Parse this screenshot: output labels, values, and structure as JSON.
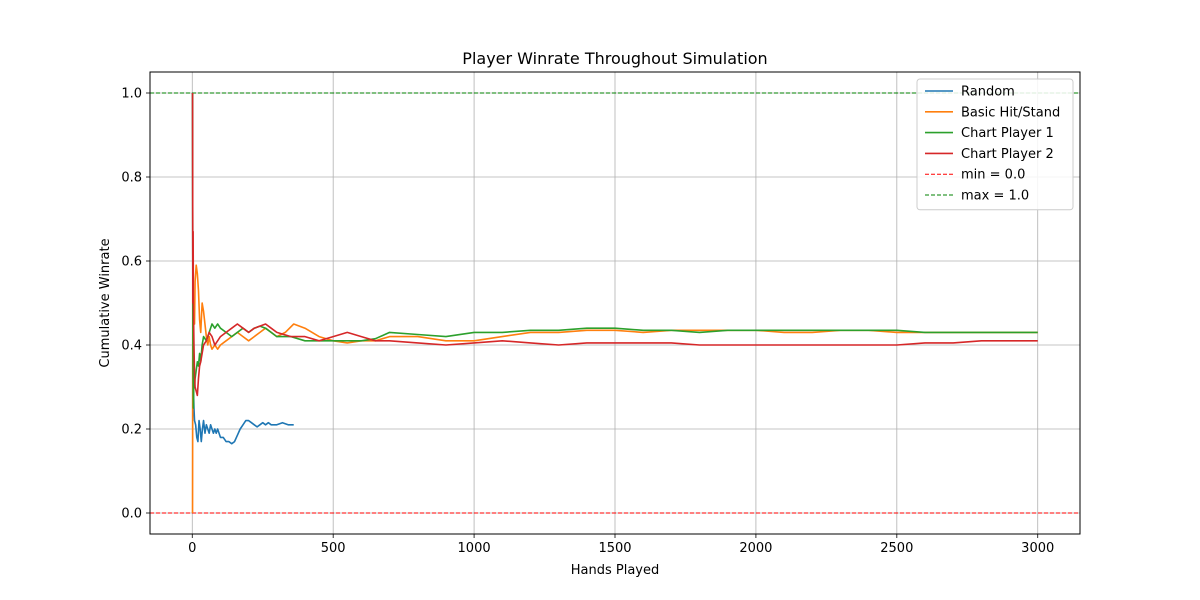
{
  "chart_data": {
    "type": "line",
    "title": "Player Winrate Throughout Simulation",
    "xlabel": "Hands Played",
    "ylabel": "Cumulative Winrate",
    "xlim": [
      -150,
      3150
    ],
    "ylim": [
      -0.05,
      1.05
    ],
    "xticks": [
      0,
      500,
      1000,
      1500,
      2000,
      2500,
      3000
    ],
    "yticks": [
      0.0,
      0.2,
      0.4,
      0.6,
      0.8,
      1.0
    ],
    "grid": true,
    "legend_position": "top-right",
    "series": [
      {
        "name": "Random",
        "color": "#1f77b4",
        "points": [
          [
            1,
            1.0
          ],
          [
            2,
            0.5
          ],
          [
            4,
            0.3
          ],
          [
            6,
            0.25
          ],
          [
            8,
            0.22
          ],
          [
            12,
            0.21
          ],
          [
            16,
            0.18
          ],
          [
            20,
            0.17
          ],
          [
            24,
            0.22
          ],
          [
            28,
            0.2
          ],
          [
            32,
            0.17
          ],
          [
            36,
            0.2
          ],
          [
            40,
            0.22
          ],
          [
            45,
            0.19
          ],
          [
            50,
            0.21
          ],
          [
            55,
            0.2
          ],
          [
            60,
            0.19
          ],
          [
            65,
            0.21
          ],
          [
            70,
            0.2
          ],
          [
            75,
            0.19
          ],
          [
            80,
            0.2
          ],
          [
            85,
            0.19
          ],
          [
            90,
            0.2
          ],
          [
            95,
            0.19
          ],
          [
            100,
            0.18
          ],
          [
            110,
            0.18
          ],
          [
            120,
            0.17
          ],
          [
            130,
            0.17
          ],
          [
            140,
            0.165
          ],
          [
            150,
            0.17
          ],
          [
            160,
            0.185
          ],
          [
            170,
            0.2
          ],
          [
            180,
            0.21
          ],
          [
            190,
            0.22
          ],
          [
            200,
            0.22
          ],
          [
            210,
            0.215
          ],
          [
            220,
            0.21
          ],
          [
            230,
            0.205
          ],
          [
            240,
            0.21
          ],
          [
            250,
            0.215
          ],
          [
            260,
            0.21
          ],
          [
            270,
            0.215
          ],
          [
            280,
            0.21
          ],
          [
            300,
            0.21
          ],
          [
            320,
            0.215
          ],
          [
            340,
            0.21
          ],
          [
            360,
            0.21
          ]
        ]
      },
      {
        "name": "Basic Hit/Stand",
        "color": "#ff7f0e",
        "points": [
          [
            1,
            0.0
          ],
          [
            2,
            0.5
          ],
          [
            3,
            0.33
          ],
          [
            4,
            0.5
          ],
          [
            6,
            0.5
          ],
          [
            8,
            0.45
          ],
          [
            10,
            0.55
          ],
          [
            14,
            0.59
          ],
          [
            18,
            0.57
          ],
          [
            22,
            0.53
          ],
          [
            26,
            0.46
          ],
          [
            30,
            0.43
          ],
          [
            35,
            0.5
          ],
          [
            40,
            0.48
          ],
          [
            45,
            0.45
          ],
          [
            50,
            0.42
          ],
          [
            55,
            0.4
          ],
          [
            60,
            0.42
          ],
          [
            65,
            0.4
          ],
          [
            70,
            0.39
          ],
          [
            80,
            0.4
          ],
          [
            90,
            0.39
          ],
          [
            100,
            0.4
          ],
          [
            120,
            0.41
          ],
          [
            140,
            0.42
          ],
          [
            160,
            0.43
          ],
          [
            180,
            0.42
          ],
          [
            200,
            0.41
          ],
          [
            220,
            0.42
          ],
          [
            240,
            0.43
          ],
          [
            260,
            0.44
          ],
          [
            280,
            0.43
          ],
          [
            300,
            0.42
          ],
          [
            330,
            0.43
          ],
          [
            360,
            0.45
          ],
          [
            400,
            0.44
          ],
          [
            450,
            0.42
          ],
          [
            500,
            0.41
          ],
          [
            550,
            0.405
          ],
          [
            600,
            0.41
          ],
          [
            650,
            0.41
          ],
          [
            700,
            0.42
          ],
          [
            800,
            0.42
          ],
          [
            900,
            0.41
          ],
          [
            1000,
            0.41
          ],
          [
            1100,
            0.42
          ],
          [
            1200,
            0.43
          ],
          [
            1300,
            0.43
          ],
          [
            1400,
            0.435
          ],
          [
            1500,
            0.435
          ],
          [
            1600,
            0.43
          ],
          [
            1700,
            0.435
          ],
          [
            1800,
            0.435
          ],
          [
            1900,
            0.435
          ],
          [
            2000,
            0.435
          ],
          [
            2100,
            0.43
          ],
          [
            2200,
            0.43
          ],
          [
            2300,
            0.435
          ],
          [
            2400,
            0.435
          ],
          [
            2500,
            0.43
          ],
          [
            2600,
            0.43
          ],
          [
            2700,
            0.43
          ],
          [
            2800,
            0.43
          ],
          [
            2900,
            0.43
          ],
          [
            3000,
            0.43
          ]
        ]
      },
      {
        "name": "Chart Player 1",
        "color": "#2ca02c",
        "points": [
          [
            1,
            1.0
          ],
          [
            2,
            0.5
          ],
          [
            3,
            0.33
          ],
          [
            4,
            0.25
          ],
          [
            6,
            0.33
          ],
          [
            8,
            0.3
          ],
          [
            10,
            0.32
          ],
          [
            14,
            0.34
          ],
          [
            18,
            0.36
          ],
          [
            22,
            0.35
          ],
          [
            26,
            0.38
          ],
          [
            30,
            0.36
          ],
          [
            35,
            0.4
          ],
          [
            40,
            0.42
          ],
          [
            50,
            0.41
          ],
          [
            60,
            0.43
          ],
          [
            70,
            0.45
          ],
          [
            80,
            0.44
          ],
          [
            90,
            0.45
          ],
          [
            100,
            0.44
          ],
          [
            120,
            0.43
          ],
          [
            140,
            0.42
          ],
          [
            160,
            0.43
          ],
          [
            180,
            0.44
          ],
          [
            200,
            0.43
          ],
          [
            220,
            0.44
          ],
          [
            240,
            0.445
          ],
          [
            260,
            0.44
          ],
          [
            280,
            0.43
          ],
          [
            300,
            0.42
          ],
          [
            350,
            0.42
          ],
          [
            400,
            0.41
          ],
          [
            450,
            0.41
          ],
          [
            500,
            0.41
          ],
          [
            550,
            0.41
          ],
          [
            600,
            0.41
          ],
          [
            650,
            0.415
          ],
          [
            700,
            0.43
          ],
          [
            800,
            0.425
          ],
          [
            900,
            0.42
          ],
          [
            1000,
            0.43
          ],
          [
            1100,
            0.43
          ],
          [
            1200,
            0.435
          ],
          [
            1300,
            0.435
          ],
          [
            1400,
            0.44
          ],
          [
            1500,
            0.44
          ],
          [
            1600,
            0.435
          ],
          [
            1700,
            0.435
          ],
          [
            1800,
            0.43
          ],
          [
            1900,
            0.435
          ],
          [
            2000,
            0.435
          ],
          [
            2100,
            0.435
          ],
          [
            2200,
            0.435
          ],
          [
            2300,
            0.435
          ],
          [
            2400,
            0.435
          ],
          [
            2500,
            0.435
          ],
          [
            2600,
            0.43
          ],
          [
            2700,
            0.43
          ],
          [
            2800,
            0.43
          ],
          [
            2900,
            0.43
          ],
          [
            3000,
            0.43
          ]
        ]
      },
      {
        "name": "Chart Player 2",
        "color": "#d62728",
        "points": [
          [
            1,
            1.0
          ],
          [
            2,
            0.5
          ],
          [
            3,
            0.67
          ],
          [
            4,
            0.5
          ],
          [
            6,
            0.4
          ],
          [
            8,
            0.33
          ],
          [
            10,
            0.3
          ],
          [
            14,
            0.29
          ],
          [
            18,
            0.28
          ],
          [
            22,
            0.32
          ],
          [
            26,
            0.35
          ],
          [
            30,
            0.36
          ],
          [
            35,
            0.38
          ],
          [
            40,
            0.4
          ],
          [
            50,
            0.41
          ],
          [
            60,
            0.43
          ],
          [
            70,
            0.42
          ],
          [
            80,
            0.4
          ],
          [
            90,
            0.41
          ],
          [
            100,
            0.42
          ],
          [
            120,
            0.43
          ],
          [
            140,
            0.44
          ],
          [
            160,
            0.45
          ],
          [
            180,
            0.44
          ],
          [
            200,
            0.43
          ],
          [
            220,
            0.44
          ],
          [
            240,
            0.445
          ],
          [
            260,
            0.45
          ],
          [
            280,
            0.44
          ],
          [
            300,
            0.43
          ],
          [
            350,
            0.42
          ],
          [
            400,
            0.42
          ],
          [
            450,
            0.41
          ],
          [
            500,
            0.42
          ],
          [
            550,
            0.43
          ],
          [
            600,
            0.42
          ],
          [
            650,
            0.41
          ],
          [
            700,
            0.41
          ],
          [
            800,
            0.405
          ],
          [
            900,
            0.4
          ],
          [
            1000,
            0.405
          ],
          [
            1100,
            0.41
          ],
          [
            1200,
            0.405
          ],
          [
            1300,
            0.4
          ],
          [
            1400,
            0.405
          ],
          [
            1500,
            0.405
          ],
          [
            1600,
            0.405
          ],
          [
            1700,
            0.405
          ],
          [
            1800,
            0.4
          ],
          [
            1900,
            0.4
          ],
          [
            2000,
            0.4
          ],
          [
            2100,
            0.4
          ],
          [
            2200,
            0.4
          ],
          [
            2300,
            0.4
          ],
          [
            2400,
            0.4
          ],
          [
            2500,
            0.4
          ],
          [
            2600,
            0.405
          ],
          [
            2700,
            0.405
          ],
          [
            2800,
            0.41
          ],
          [
            2900,
            0.41
          ],
          [
            3000,
            0.41
          ]
        ]
      }
    ],
    "hlines": [
      {
        "name": "min = 0.0",
        "value": 0.0,
        "color": "#ff0000"
      },
      {
        "name": "max = 1.0",
        "value": 1.0,
        "color": "#008000"
      }
    ]
  }
}
